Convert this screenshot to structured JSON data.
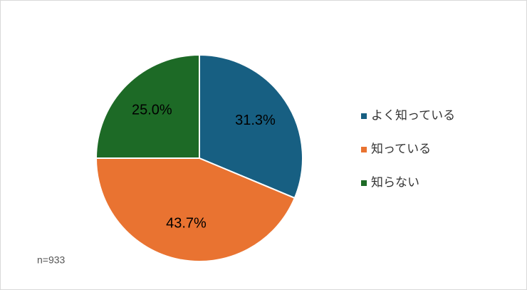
{
  "chart_data": {
    "type": "pie",
    "categories": [
      "よく知っている",
      "知っている",
      "知らない"
    ],
    "values": [
      31.3,
      43.7,
      25.0
    ],
    "value_labels": [
      "31.3%",
      "43.7%",
      "25.0%"
    ],
    "colors": [
      "#175f82",
      "#e97331",
      "#1d6a26"
    ],
    "note": "n=933",
    "legend": "right"
  }
}
